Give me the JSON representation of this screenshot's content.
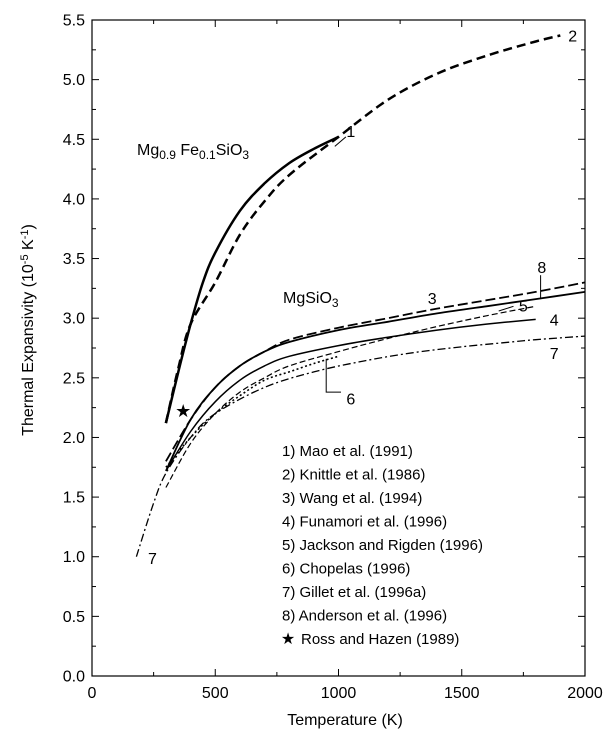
{
  "chart_data": {
    "type": "line",
    "xlabel": "Temperature (K)",
    "ylabel": "Thermal Expansivity (10",
    "ylabel_exp": "-5",
    "ylabel_unit": " K",
    "ylabel_unit_exp": "-1",
    "ylabel_close": ")",
    "xlim": [
      0,
      2000
    ],
    "ylim": [
      0,
      5.5
    ],
    "xticks": [
      0,
      500,
      1000,
      1500,
      2000
    ],
    "yticks": [
      0.0,
      0.5,
      1.0,
      1.5,
      2.0,
      2.5,
      3.0,
      3.5,
      4.0,
      4.5,
      5.0,
      5.5
    ],
    "ytick_labels": [
      "0.0",
      "0.5",
      "1.0",
      "1.5",
      "2.0",
      "2.5",
      "3.0",
      "3.5",
      "4.0",
      "4.5",
      "5.0",
      "5.5"
    ],
    "compounds": {
      "fe": {
        "part1": "Mg",
        "sub1": "0.9",
        "part2": " Fe",
        "sub2": "0.1",
        "part3": "SiO",
        "sub3": "3"
      },
      "mg": {
        "part1": "MgSiO",
        "sub1": "3"
      }
    },
    "series": [
      {
        "name": "Mao et al. (1991)",
        "label": "1",
        "style": "solid",
        "width": 2.5,
        "points": [
          [
            300,
            2.12
          ],
          [
            350,
            2.55
          ],
          [
            400,
            2.95
          ],
          [
            450,
            3.3
          ],
          [
            500,
            3.55
          ],
          [
            600,
            3.9
          ],
          [
            700,
            4.13
          ],
          [
            800,
            4.3
          ],
          [
            900,
            4.42
          ],
          [
            1000,
            4.52
          ]
        ]
      },
      {
        "name": "Knittle et al. (1986)",
        "label": "2",
        "style": "dashed",
        "width": 2.5,
        "points": [
          [
            300,
            2.12
          ],
          [
            350,
            2.58
          ],
          [
            400,
            2.95
          ],
          [
            500,
            3.3
          ],
          [
            600,
            3.7
          ],
          [
            700,
            3.98
          ],
          [
            800,
            4.2
          ],
          [
            1000,
            4.52
          ],
          [
            1200,
            4.83
          ],
          [
            1400,
            5.05
          ],
          [
            1600,
            5.2
          ],
          [
            1800,
            5.32
          ],
          [
            1900,
            5.37
          ]
        ]
      },
      {
        "name": "Wang et al. (1994)",
        "label": "3",
        "style": "longdash",
        "width": 1.8,
        "points": [
          [
            300,
            1.8
          ],
          [
            400,
            2.15
          ],
          [
            500,
            2.42
          ],
          [
            600,
            2.6
          ],
          [
            700,
            2.72
          ],
          [
            800,
            2.82
          ],
          [
            1000,
            2.92
          ],
          [
            1200,
            3.0
          ],
          [
            1400,
            3.08
          ],
          [
            1600,
            3.15
          ],
          [
            1800,
            3.22
          ],
          [
            2000,
            3.3
          ]
        ]
      },
      {
        "name": "Funamori et al. (1996)",
        "label": "4",
        "style": "solid",
        "width": 1.5,
        "points": [
          [
            300,
            1.72
          ],
          [
            400,
            2.05
          ],
          [
            500,
            2.3
          ],
          [
            600,
            2.48
          ],
          [
            700,
            2.6
          ],
          [
            800,
            2.68
          ],
          [
            1000,
            2.77
          ],
          [
            1200,
            2.84
          ],
          [
            1400,
            2.9
          ],
          [
            1600,
            2.95
          ],
          [
            1800,
            2.99
          ]
        ]
      },
      {
        "name": "Jackson and Rigden (1996)",
        "label": "5",
        "style": "dashed-thin",
        "width": 1.2,
        "points": [
          [
            300,
            1.58
          ],
          [
            400,
            1.95
          ],
          [
            500,
            2.2
          ],
          [
            600,
            2.38
          ],
          [
            700,
            2.5
          ],
          [
            800,
            2.6
          ],
          [
            1000,
            2.72
          ],
          [
            1200,
            2.83
          ],
          [
            1400,
            2.93
          ],
          [
            1600,
            3.02
          ],
          [
            1800,
            3.1
          ]
        ]
      },
      {
        "name": "Chopelas (1996)",
        "label": "6",
        "style": "dotted",
        "width": 1.6,
        "points": [
          [
            300,
            1.75
          ],
          [
            400,
            2.0
          ],
          [
            500,
            2.2
          ],
          [
            600,
            2.35
          ],
          [
            700,
            2.48
          ],
          [
            800,
            2.55
          ],
          [
            900,
            2.62
          ],
          [
            1000,
            2.68
          ]
        ]
      },
      {
        "name": "Gillet et al. (1996a)",
        "label": "7",
        "style": "dashdot",
        "width": 1.3,
        "points": [
          [
            180,
            1.0
          ],
          [
            250,
            1.45
          ],
          [
            300,
            1.7
          ],
          [
            400,
            2.0
          ],
          [
            500,
            2.2
          ],
          [
            700,
            2.42
          ],
          [
            900,
            2.55
          ],
          [
            1100,
            2.64
          ],
          [
            1300,
            2.71
          ],
          [
            1500,
            2.76
          ],
          [
            1700,
            2.8
          ],
          [
            1800,
            2.82
          ],
          [
            2000,
            2.85
          ]
        ]
      },
      {
        "name": "Anderson et al. (1996)",
        "label": "8",
        "style": "solid",
        "width": 1.8,
        "points": [
          [
            300,
            1.72
          ],
          [
            400,
            2.15
          ],
          [
            500,
            2.42
          ],
          [
            600,
            2.6
          ],
          [
            700,
            2.72
          ],
          [
            800,
            2.8
          ],
          [
            1000,
            2.9
          ],
          [
            1200,
            2.97
          ],
          [
            1400,
            3.04
          ],
          [
            1600,
            3.1
          ],
          [
            1800,
            3.16
          ],
          [
            2000,
            3.22
          ]
        ]
      }
    ],
    "markers": [
      {
        "name": "Ross and Hazen (1989)",
        "symbol": "★",
        "x": 370,
        "y": 2.22
      }
    ],
    "curve_labels": [
      {
        "text": "1",
        "x": 1050,
        "y": 4.56
      },
      {
        "text": "2",
        "x": 1950,
        "y": 5.36
      },
      {
        "text": "3",
        "x": 1380,
        "y": 3.16
      },
      {
        "text": "4",
        "x": 1875,
        "y": 2.98
      },
      {
        "text": "5",
        "x": 1750,
        "y": 3.1
      },
      {
        "text": "6",
        "x": 1050,
        "y": 2.32
      },
      {
        "text": "7",
        "x": 1875,
        "y": 2.7
      },
      {
        "text": "7",
        "x": 245,
        "y": 0.98
      },
      {
        "text": "8",
        "x": 1825,
        "y": 3.42
      }
    ],
    "legend": {
      "placement": "lower-right",
      "entries": [
        "1) Mao et al. (1991)",
        "2) Knittle et al. (1986)",
        "3) Wang et al. (1994)",
        "4) Funamori et al. (1996)",
        "5) Jackson and Rigden (1996)",
        "6) Chopelas (1996)",
        "7) Gillet et al. (1996a)",
        "8) Anderson et al. (1996)"
      ],
      "star_entry": {
        "symbol": "★",
        "text": "Ross and Hazen (1989)"
      }
    }
  }
}
